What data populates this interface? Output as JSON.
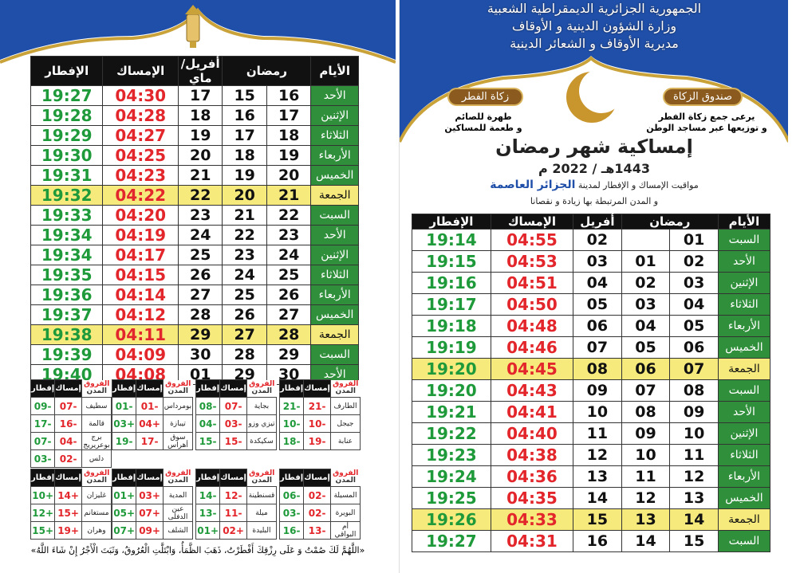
{
  "colors": {
    "day_green": "#2f8f3a",
    "imsak_red": "#e3262b",
    "iftar_green": "#1f9a3a",
    "friday_yellow": "#f6ea7c",
    "header_blue": "#1f4fa8"
  },
  "right": {
    "header_lines": [
      "الجمهورية الجزائرية الديمقراطية الشعبية",
      "وزارة الشؤون الدينية و الأوقاف",
      "مديرية الأوقاف و الشعائر الدينية"
    ],
    "zakat_fitr": {
      "badge": "زكاة الفطر",
      "lines": [
        "طهرة للصائم",
        "و طعمة للمساكين"
      ]
    },
    "zakat_fund": {
      "badge": "صندوق الزكاة",
      "lines": [
        "يرعى جمع زكاة الفطر",
        "و توزيعها عبر مساجد الوطن"
      ]
    },
    "title": "إمساكية شهر رمضان",
    "year": "1443هـ / 2022 م",
    "subtitle_prefix": "مواقيت الإمساك و الإفطار لمدينة",
    "city": "الجزائر العاصمة",
    "subtitle2": "و المدن المرتبطة بها زيادة و نقصانا",
    "headers": [
      "الأيام",
      "رمضان",
      "أفريل",
      "الإمساك",
      "الإفطار"
    ],
    "rows": [
      [
        "السبت",
        "01",
        "",
        "02",
        "04:55",
        "19:14"
      ],
      [
        "الأحد",
        "02",
        "01",
        "03",
        "04:53",
        "19:15"
      ],
      [
        "الإثنين",
        "03",
        "02",
        "04",
        "04:51",
        "19:16"
      ],
      [
        "الثلاثاء",
        "04",
        "03",
        "05",
        "04:50",
        "19:17"
      ],
      [
        "الأربعاء",
        "05",
        "04",
        "06",
        "04:48",
        "19:18"
      ],
      [
        "الخميس",
        "06",
        "05",
        "07",
        "04:46",
        "19:19"
      ],
      [
        "الجمعة",
        "07",
        "06",
        "08",
        "04:45",
        "19:20"
      ],
      [
        "السبت",
        "08",
        "07",
        "09",
        "04:43",
        "19:20"
      ],
      [
        "الأحد",
        "09",
        "08",
        "10",
        "04:41",
        "19:21"
      ],
      [
        "الإثنين",
        "10",
        "09",
        "11",
        "04:40",
        "19:22"
      ],
      [
        "الثلاثاء",
        "11",
        "10",
        "12",
        "04:38",
        "19:23"
      ],
      [
        "الأربعاء",
        "12",
        "11",
        "13",
        "04:36",
        "19:24"
      ],
      [
        "الخميس",
        "13",
        "12",
        "14",
        "04:35",
        "19:25"
      ],
      [
        "الجمعة",
        "14",
        "13",
        "15",
        "04:33",
        "19:26"
      ],
      [
        "السبت",
        "15",
        "14",
        "16",
        "04:31",
        "19:27"
      ]
    ]
  },
  "left": {
    "headers": [
      "الأيام",
      "رمضان",
      "أفريل/ماي",
      "الإمساك",
      "الإفطار"
    ],
    "rows": [
      [
        "الأحد",
        "16",
        "15",
        "17",
        "04:30",
        "19:27"
      ],
      [
        "الإثنين",
        "17",
        "16",
        "18",
        "04:28",
        "19:28"
      ],
      [
        "الثلاثاء",
        "18",
        "17",
        "19",
        "04:27",
        "19:29"
      ],
      [
        "الأربعاء",
        "19",
        "18",
        "20",
        "04:25",
        "19:30"
      ],
      [
        "الخميس",
        "20",
        "19",
        "21",
        "04:23",
        "19:31"
      ],
      [
        "الجمعة",
        "21",
        "20",
        "22",
        "04:22",
        "19:32"
      ],
      [
        "السبت",
        "22",
        "21",
        "23",
        "04:20",
        "19:33"
      ],
      [
        "الأحد",
        "23",
        "22",
        "24",
        "04:19",
        "19:34"
      ],
      [
        "الإثنين",
        "24",
        "23",
        "25",
        "04:17",
        "19:34"
      ],
      [
        "الثلاثاء",
        "25",
        "24",
        "26",
        "04:15",
        "19:35"
      ],
      [
        "الأربعاء",
        "26",
        "25",
        "27",
        "04:14",
        "19:36"
      ],
      [
        "الخميس",
        "27",
        "26",
        "28",
        "04:12",
        "19:37"
      ],
      [
        "الجمعة",
        "28",
        "27",
        "29",
        "04:11",
        "19:38"
      ],
      [
        "السبت",
        "29",
        "28",
        "30",
        "04:09",
        "19:39"
      ],
      [
        "الأحد",
        "30",
        "29",
        "01",
        "04:08",
        "19:40"
      ]
    ],
    "diff_headers": {
      "caption_top": "الفروق",
      "caption_bottom": "المدن",
      "imsak": "إمساك",
      "iftar": "إفطار"
    },
    "diff_groups": [
      [
        [
          "الطارف",
          "-21",
          "-21"
        ],
        [
          "جيجل",
          "-10",
          "-10"
        ],
        [
          "عنابة",
          "-19",
          "-18"
        ]
      ],
      [
        [
          "بجاية",
          "-07",
          "-08"
        ],
        [
          "تيزي وزو",
          "-03",
          "-04"
        ],
        [
          "سكيكدة",
          "-15",
          "-15"
        ]
      ],
      [
        [
          "بومرداس",
          "-01",
          "-01"
        ],
        [
          "تيبازة",
          "+04",
          "+03"
        ],
        [
          "سوق أهراس",
          "-17",
          "-19"
        ]
      ],
      [
        [
          "سطيف",
          "-07",
          "-09"
        ],
        [
          "قالمة",
          "-16",
          "-17"
        ],
        [
          "برج بوعريريج",
          "-04",
          "-07"
        ],
        [
          "دلس",
          "-02",
          "-03"
        ]
      ],
      [
        [
          "المسيلة",
          "-02",
          "-06"
        ],
        [
          "البويرة",
          "-02",
          "-03"
        ],
        [
          "أم البواقي",
          "-13",
          "-16"
        ]
      ],
      [
        [
          "قسنطينة",
          "-12",
          "-14"
        ],
        [
          "ميلة",
          "-11",
          "-13"
        ],
        [
          "البليدة",
          "+02",
          "+01"
        ]
      ],
      [
        [
          "المدية",
          "+03",
          "+01"
        ],
        [
          "عين الدفلى",
          "+07",
          "+05"
        ],
        [
          "الشلف",
          "+09",
          "+07"
        ]
      ],
      [
        [
          "غليزان",
          "+14",
          "+10"
        ],
        [
          "مستغانم",
          "+15",
          "+12"
        ],
        [
          "وهران",
          "+19",
          "+15"
        ]
      ]
    ],
    "dua": "«اللَّهُمَّ لَكَ صُمْتُ وَ عَلَى رِزْقِكَ أَفْطَرْتُ، ذَهَبَ الظَّمَأُ، وَابْتَلَّتِ الْعُرُوقُ، وَثَبَتَ الْأَجْرُ إِنْ شَاءَ اللَّهُ»"
  }
}
